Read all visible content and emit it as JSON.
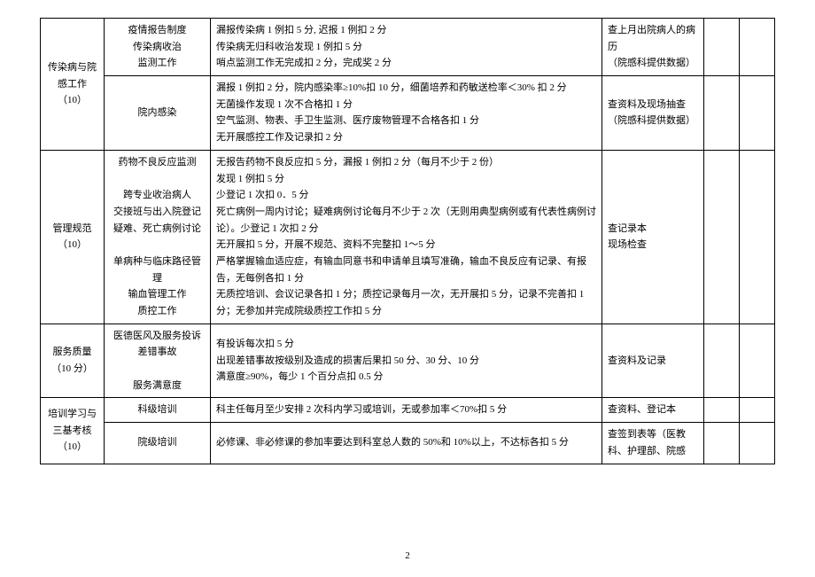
{
  "pageNumber": "2",
  "rows": [
    {
      "c1": "传染病与院感工作\n（10）",
      "c1rs": 2,
      "c2": "疫情报告制度\n传染病收治\n监测工作",
      "c3": "漏报传染病 1 例扣 5 分, 迟报 1 例扣 2 分\n传染病无归科收治发现 1 例扣 5 分\n哨点监测工作无完成扣 2 分，完成奖 2 分",
      "c4": "查上月出院病人的病历\n（院感科提供数据）"
    },
    {
      "c2": "院内感染",
      "c3": "漏报 1 例扣 2 分，院内感染率≥10%扣 10 分，细菌培养和药敏送检率＜30% 扣 2 分\n无菌操作发现 1 次不合格扣 1 分\n空气监测、物表、手卫生监测、医疗废物管理不合格各扣 1 分\n无开展感控工作及记录扣 2 分",
      "c4": "查资料及现场抽查\n（院感科提供数据）"
    },
    {
      "c1": "管理规范\n（10）",
      "c2": "药物不良反应监测\n\n跨专业收治病人\n交接班与出入院登记\n疑难、死亡病例讨论\n\n单病种与临床路径管理\n输血管理工作\n质控工作",
      "c3": "无报告药物不良反应扣 5 分，漏报 1 例扣 2 分（每月不少于 2 份）\n发现 1 例扣 5 分\n少登记 1 次扣 0．5 分\n死亡病例一周内讨论；疑难病例讨论每月不少于 2 次（无则用典型病例或有代表性病例讨论）。少登记 1 次扣 2 分\n无开展扣 5 分，开展不规范、资料不完整扣 1～5 分\n严格掌握输血适应症，有输血同意书和申请单且填写准确，输血不良反应有记录、有报告，无每例各扣 1 分\n无质控培训、会议记录各扣 1 分；质控记录每月一次，无开展扣 5 分，记录不完善扣 1 分；无参加并完成院级质控工作扣 5 分",
      "c4": "查记录本\n现场检查"
    },
    {
      "c1": "服务质量\n（10 分）",
      "c2": "医德医风及服务投诉\n差错事故\n\n服务满意度",
      "c3": "有投诉每次扣 5 分\n出现差错事故按级别及造成的损害后果扣 50 分、30 分、10 分\n满意度≥90%，每少 1 个百分点扣 0.5 分",
      "c4": "查资料及记录"
    },
    {
      "c1": "培训学习与三基考核\n（10）",
      "c1rs": 2,
      "c2": "科级培训",
      "c3": "科主任每月至少安排 2 次科内学习或培训，无或参加率＜70%扣 5 分",
      "c4": "查资料、登记本"
    },
    {
      "c2": "院级培训",
      "c3": "必修课、非必修课的参加率要达到科室总人数的 50%和 10%以上，不达标各扣 5 分",
      "c4": "查签到表等（医教科、护理部、院感"
    }
  ]
}
